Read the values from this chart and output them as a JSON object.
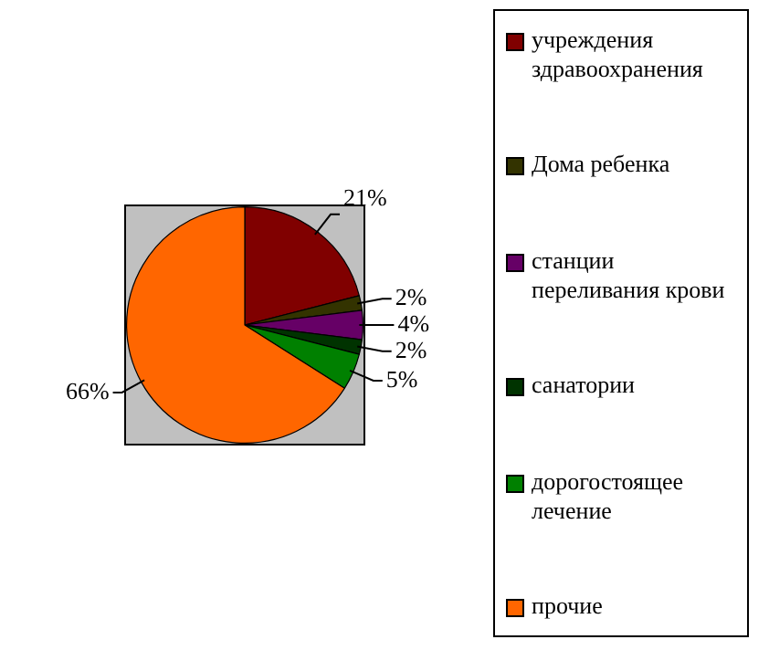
{
  "chart_data": {
    "type": "pie",
    "categories": [
      "учреждения здравоохранения",
      "Дома ребенка",
      "станции переливания крови",
      "санатории",
      "дорогостоящее лечение",
      "прочие"
    ],
    "values": [
      21,
      2,
      4,
      2,
      5,
      66
    ],
    "value_labels": [
      "21%",
      "2%",
      "4%",
      "2%",
      "5%",
      "66%"
    ],
    "colors": [
      "#800000",
      "#333300",
      "#660066",
      "#003300",
      "#008000",
      "#ff6600"
    ],
    "legend": "right"
  }
}
